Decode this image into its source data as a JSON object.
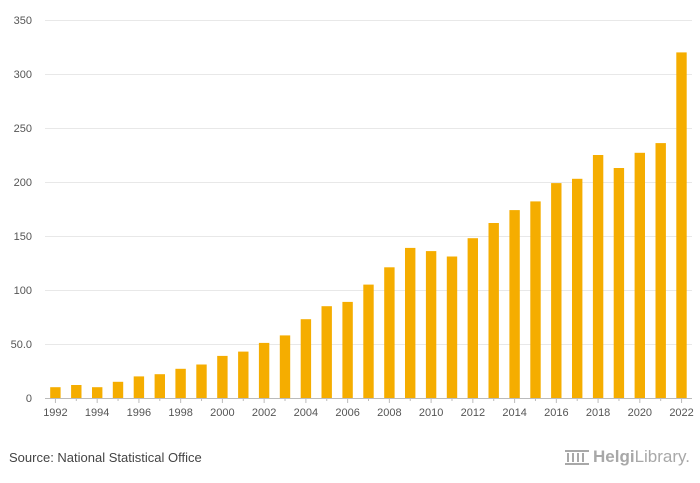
{
  "chart_data": {
    "type": "bar",
    "x": [
      1992,
      1993,
      1994,
      1995,
      1996,
      1997,
      1998,
      1999,
      2000,
      2001,
      2002,
      2003,
      2004,
      2005,
      2006,
      2007,
      2008,
      2009,
      2010,
      2011,
      2012,
      2013,
      2014,
      2015,
      2016,
      2017,
      2018,
      2019,
      2020,
      2021,
      2022
    ],
    "values": [
      10,
      12,
      10,
      15,
      20,
      22,
      27,
      31,
      39,
      43,
      51,
      58,
      73,
      85,
      89,
      105,
      121,
      139,
      136,
      131,
      148,
      162,
      174,
      182,
      199,
      203,
      225,
      213,
      227,
      236,
      320
    ],
    "x_tick_labels": [
      "1992",
      "1994",
      "1996",
      "1998",
      "2000",
      "2002",
      "2004",
      "2006",
      "2008",
      "2010",
      "2012",
      "2014",
      "2016",
      "2018",
      "2020",
      "2022"
    ],
    "y_ticks": [
      0,
      50,
      100,
      150,
      200,
      250,
      300,
      350
    ],
    "y_tick_labels": [
      "0",
      "50.0",
      "100",
      "150",
      "200",
      "250",
      "300",
      "350"
    ],
    "ylim": [
      0,
      350
    ],
    "grid": true,
    "bar_color": "#f5ad00",
    "title": "",
    "xlabel": "",
    "ylabel": ""
  },
  "footer": {
    "source": "Source: National Statistical Office",
    "brand_part1": "Helgi",
    "brand_part2": "Library."
  },
  "icons": {
    "brand_logo": "library-columns-icon"
  },
  "colors": {
    "grid": "#e8e8e8",
    "axis": "#bbbbbb",
    "brand": "#a8a8a8"
  }
}
